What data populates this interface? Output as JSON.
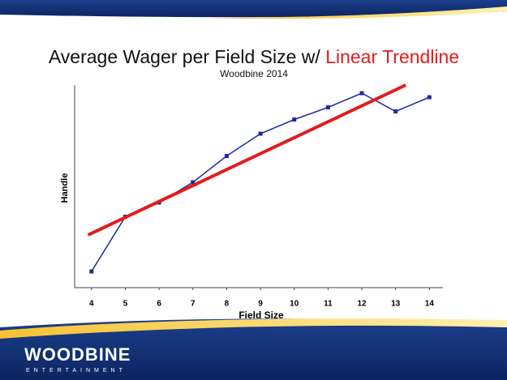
{
  "chart_data": {
    "type": "line",
    "title": "Average Wager per Field Size w/ ",
    "title_highlight": "Linear Trendline",
    "subtitle": "Woodbine 2014",
    "x_label": "Field Size",
    "y_label": "Handle",
    "x": [
      4,
      5,
      6,
      7,
      8,
      9,
      10,
      11,
      12,
      13,
      14
    ],
    "series": [
      {
        "color": "#1f2a9e",
        "values": [
          8,
          35,
          42,
          52,
          65,
          76,
          83,
          89,
          96,
          87,
          94
        ]
      }
    ],
    "trendline": {
      "color": "#e31b1b",
      "x": [
        3.9,
        13.3
      ],
      "values": [
        26,
        100
      ]
    },
    "xlim": [
      3.5,
      14.4
    ],
    "xticks": [
      4,
      5,
      6,
      7,
      8,
      9,
      10,
      11,
      12,
      13,
      14
    ],
    "ylim": [
      0,
      100
    ]
  },
  "logo": {
    "name": "WOODBINE",
    "tagline": "ENTERTAINMENT"
  }
}
